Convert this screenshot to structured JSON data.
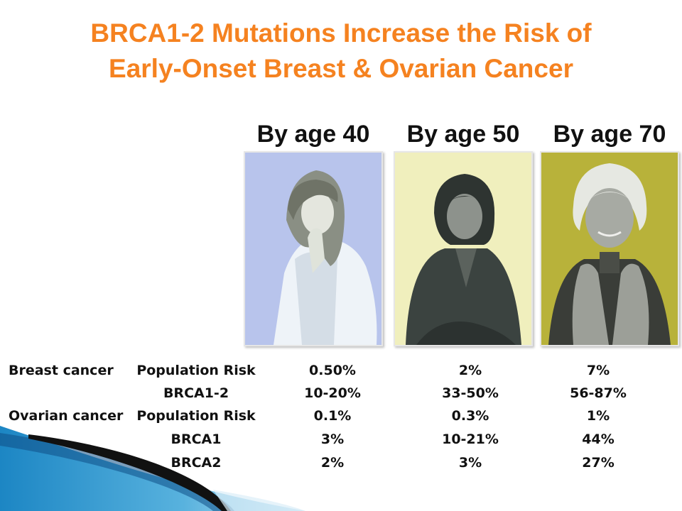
{
  "slide": {
    "title_line1": "BRCA1-2 Mutations Increase the Risk of",
    "title_line2": "Early-Onset Breast  & Ovarian Cancer",
    "title_color": "#f58220"
  },
  "age_headers": [
    "By age 40",
    "By age 50",
    "By age 70"
  ],
  "photos": [
    {
      "subject": "young-woman",
      "background": "#b8c4ec"
    },
    {
      "subject": "middle-aged-woman",
      "background": "#f0efbd"
    },
    {
      "subject": "older-woman",
      "background": "#b8b23a"
    }
  ],
  "risk_table": {
    "rows": [
      {
        "category": "Breast cancer",
        "group": "Population Risk",
        "by_40": "0.50%",
        "by_50": "2%",
        "by_70": "7%"
      },
      {
        "category": "",
        "group": "BRCA1-2",
        "by_40": "10-20%",
        "by_50": "33-50%",
        "by_70": "56-87%"
      },
      {
        "category": "Ovarian cancer",
        "group": "Population Risk",
        "by_40": "0.1%",
        "by_50": "0.3%",
        "by_70": "1%"
      },
      {
        "category": "",
        "group": "BRCA1",
        "by_40": "3%",
        "by_50": "10-21%",
        "by_70": "44%"
      },
      {
        "category": "",
        "group": "BRCA2",
        "by_40": "2%",
        "by_50": "3%",
        "by_70": "27%"
      }
    ]
  }
}
